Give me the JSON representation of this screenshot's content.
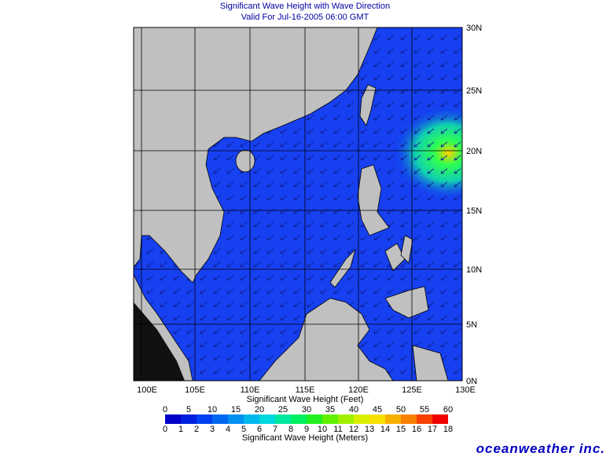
{
  "title": [
    "Significant Wave Height with Wave Direction",
    "Valid For Jul-16-2005 06:00 GMT"
  ],
  "map": {
    "lon_labels": [
      "100E",
      "105E",
      "110E",
      "115E",
      "120E",
      "125E",
      "130E"
    ],
    "lat_labels": [
      "30N",
      "25N",
      "20N",
      "15N",
      "10N",
      "5N",
      "0N"
    ]
  },
  "colorbar": {
    "feet_label": "Significant Wave Height (Feet)",
    "feet_ticks": [
      0,
      5,
      10,
      15,
      20,
      25,
      30,
      35,
      40,
      45,
      50,
      55,
      60
    ],
    "meters_label": "Significant Wave Height (Meters)",
    "meters_ticks": [
      0,
      1,
      2,
      3,
      4,
      5,
      6,
      7,
      8,
      9,
      10,
      11,
      12,
      13,
      14,
      15,
      16,
      17,
      18
    ]
  },
  "brand": "oceanweather inc."
}
